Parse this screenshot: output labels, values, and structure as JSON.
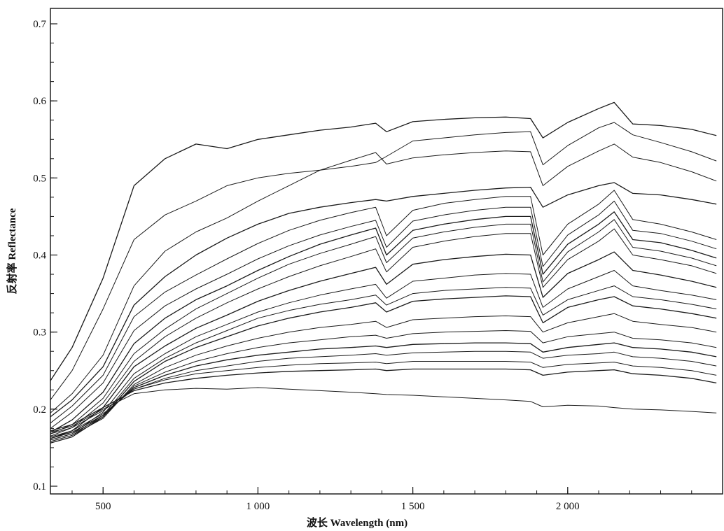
{
  "chart_data": {
    "type": "line",
    "xlabel": "波长 Wavelength (nm)",
    "ylabel": "反射率 Reflectance",
    "xlim": [
      330,
      2500
    ],
    "ylim": [
      0.09,
      0.72
    ],
    "xticks": [
      500,
      1000,
      1500,
      2000
    ],
    "xtick_labels": [
      "500",
      "1 000",
      "1 500",
      "2 000"
    ],
    "yticks": [
      0.1,
      0.2,
      0.3,
      0.4,
      0.5,
      0.6,
      0.7
    ],
    "ytick_labels": [
      "0.1",
      "0.2",
      "0.3",
      "0.4",
      "0.5",
      "0.6",
      "0.7"
    ],
    "grid": false,
    "line_color": "#1a1a1a",
    "x": [
      330,
      400,
      500,
      600,
      700,
      800,
      900,
      1000,
      1100,
      1200,
      1300,
      1380,
      1415,
      1500,
      1600,
      1700,
      1800,
      1880,
      1920,
      2000,
      2100,
      2150,
      2210,
      2300,
      2400,
      2480
    ],
    "series": [
      {
        "values": [
          0.237,
          0.28,
          0.37,
          0.49,
          0.525,
          0.544,
          0.538,
          0.55,
          0.556,
          0.562,
          0.566,
          0.571,
          0.56,
          0.573,
          0.576,
          0.578,
          0.579,
          0.577,
          0.552,
          0.572,
          0.59,
          0.598,
          0.57,
          0.568,
          0.563,
          0.555
        ]
      },
      {
        "values": [
          0.212,
          0.25,
          0.33,
          0.42,
          0.452,
          0.47,
          0.49,
          0.5,
          0.506,
          0.51,
          0.515,
          0.52,
          0.528,
          0.548,
          0.552,
          0.556,
          0.559,
          0.56,
          0.517,
          0.542,
          0.565,
          0.572,
          0.556,
          0.546,
          0.534,
          0.522
        ]
      },
      {
        "values": [
          0.195,
          0.22,
          0.27,
          0.36,
          0.405,
          0.43,
          0.448,
          0.47,
          0.49,
          0.51,
          0.523,
          0.533,
          0.518,
          0.526,
          0.53,
          0.533,
          0.535,
          0.534,
          0.49,
          0.515,
          0.535,
          0.544,
          0.527,
          0.52,
          0.508,
          0.496
        ]
      },
      {
        "values": [
          0.19,
          0.212,
          0.255,
          0.335,
          0.372,
          0.4,
          0.422,
          0.44,
          0.454,
          0.462,
          0.468,
          0.472,
          0.47,
          0.476,
          0.48,
          0.484,
          0.487,
          0.488,
          0.462,
          0.478,
          0.49,
          0.494,
          0.48,
          0.478,
          0.472,
          0.466
        ]
      },
      {
        "values": [
          0.182,
          0.204,
          0.244,
          0.32,
          0.352,
          0.374,
          0.395,
          0.415,
          0.432,
          0.445,
          0.455,
          0.462,
          0.425,
          0.458,
          0.467,
          0.472,
          0.476,
          0.476,
          0.4,
          0.44,
          0.466,
          0.484,
          0.446,
          0.44,
          0.43,
          0.42
        ]
      },
      {
        "values": [
          0.175,
          0.196,
          0.234,
          0.302,
          0.334,
          0.356,
          0.375,
          0.395,
          0.412,
          0.426,
          0.437,
          0.445,
          0.41,
          0.444,
          0.452,
          0.458,
          0.462,
          0.462,
          0.385,
          0.426,
          0.452,
          0.47,
          0.432,
          0.428,
          0.418,
          0.408
        ]
      },
      {
        "values": [
          0.17,
          0.186,
          0.222,
          0.285,
          0.318,
          0.342,
          0.36,
          0.38,
          0.398,
          0.414,
          0.426,
          0.435,
          0.4,
          0.432,
          0.44,
          0.446,
          0.45,
          0.45,
          0.375,
          0.414,
          0.44,
          0.456,
          0.42,
          0.416,
          0.406,
          0.396
        ]
      },
      {
        "values": [
          0.168,
          0.18,
          0.214,
          0.272,
          0.304,
          0.33,
          0.35,
          0.37,
          0.388,
          0.402,
          0.414,
          0.424,
          0.39,
          0.422,
          0.43,
          0.436,
          0.44,
          0.44,
          0.365,
          0.404,
          0.43,
          0.446,
          0.41,
          0.405,
          0.396,
          0.386
        ]
      },
      {
        "values": [
          0.165,
          0.176,
          0.208,
          0.262,
          0.294,
          0.318,
          0.338,
          0.356,
          0.372,
          0.386,
          0.398,
          0.408,
          0.378,
          0.41,
          0.418,
          0.424,
          0.428,
          0.428,
          0.358,
          0.394,
          0.418,
          0.434,
          0.4,
          0.394,
          0.386,
          0.376
        ]
      },
      {
        "values": [
          0.162,
          0.172,
          0.202,
          0.255,
          0.282,
          0.305,
          0.322,
          0.34,
          0.354,
          0.366,
          0.376,
          0.384,
          0.362,
          0.388,
          0.394,
          0.398,
          0.401,
          0.4,
          0.345,
          0.376,
          0.394,
          0.404,
          0.38,
          0.374,
          0.366,
          0.358
        ]
      },
      {
        "values": [
          0.16,
          0.168,
          0.196,
          0.246,
          0.272,
          0.294,
          0.31,
          0.326,
          0.338,
          0.348,
          0.356,
          0.362,
          0.344,
          0.366,
          0.37,
          0.374,
          0.376,
          0.375,
          0.332,
          0.356,
          0.372,
          0.38,
          0.36,
          0.354,
          0.348,
          0.342
        ]
      },
      {
        "values": [
          0.158,
          0.166,
          0.192,
          0.24,
          0.266,
          0.286,
          0.302,
          0.318,
          0.328,
          0.336,
          0.342,
          0.348,
          0.335,
          0.35,
          0.354,
          0.356,
          0.358,
          0.357,
          0.322,
          0.342,
          0.354,
          0.36,
          0.346,
          0.342,
          0.336,
          0.33
        ]
      },
      {
        "values": [
          0.156,
          0.164,
          0.19,
          0.236,
          0.262,
          0.28,
          0.294,
          0.308,
          0.318,
          0.326,
          0.332,
          0.338,
          0.326,
          0.34,
          0.343,
          0.345,
          0.347,
          0.346,
          0.312,
          0.332,
          0.342,
          0.346,
          0.334,
          0.33,
          0.324,
          0.318
        ]
      },
      {
        "values": [
          0.158,
          0.166,
          0.188,
          0.232,
          0.254,
          0.27,
          0.282,
          0.292,
          0.3,
          0.306,
          0.31,
          0.314,
          0.306,
          0.316,
          0.318,
          0.32,
          0.321,
          0.32,
          0.3,
          0.312,
          0.32,
          0.324,
          0.314,
          0.31,
          0.306,
          0.3
        ]
      },
      {
        "values": [
          0.16,
          0.168,
          0.19,
          0.23,
          0.248,
          0.262,
          0.272,
          0.28,
          0.286,
          0.29,
          0.294,
          0.296,
          0.292,
          0.298,
          0.3,
          0.301,
          0.302,
          0.301,
          0.286,
          0.294,
          0.298,
          0.3,
          0.292,
          0.29,
          0.286,
          0.28
        ]
      },
      {
        "values": [
          0.162,
          0.17,
          0.192,
          0.228,
          0.244,
          0.256,
          0.264,
          0.27,
          0.274,
          0.278,
          0.28,
          0.282,
          0.28,
          0.284,
          0.285,
          0.286,
          0.286,
          0.285,
          0.274,
          0.28,
          0.284,
          0.286,
          0.28,
          0.278,
          0.274,
          0.268
        ]
      },
      {
        "values": [
          0.164,
          0.172,
          0.194,
          0.226,
          0.24,
          0.25,
          0.256,
          0.262,
          0.266,
          0.268,
          0.27,
          0.272,
          0.27,
          0.273,
          0.274,
          0.275,
          0.275,
          0.274,
          0.266,
          0.27,
          0.272,
          0.274,
          0.268,
          0.266,
          0.262,
          0.256
        ]
      },
      {
        "values": [
          0.168,
          0.176,
          0.198,
          0.226,
          0.238,
          0.246,
          0.25,
          0.254,
          0.257,
          0.259,
          0.26,
          0.261,
          0.259,
          0.262,
          0.262,
          0.262,
          0.262,
          0.261,
          0.254,
          0.258,
          0.26,
          0.261,
          0.256,
          0.254,
          0.25,
          0.244
        ]
      },
      {
        "values": [
          0.172,
          0.18,
          0.202,
          0.224,
          0.234,
          0.24,
          0.244,
          0.247,
          0.249,
          0.25,
          0.251,
          0.252,
          0.25,
          0.252,
          0.252,
          0.252,
          0.252,
          0.251,
          0.244,
          0.248,
          0.25,
          0.251,
          0.246,
          0.244,
          0.24,
          0.234
        ]
      },
      {
        "values": [
          0.17,
          0.178,
          0.2,
          0.22,
          0.225,
          0.227,
          0.226,
          0.228,
          0.226,
          0.224,
          0.222,
          0.22,
          0.219,
          0.218,
          0.216,
          0.214,
          0.212,
          0.21,
          0.203,
          0.205,
          0.204,
          0.202,
          0.2,
          0.199,
          0.197,
          0.195
        ]
      }
    ]
  }
}
